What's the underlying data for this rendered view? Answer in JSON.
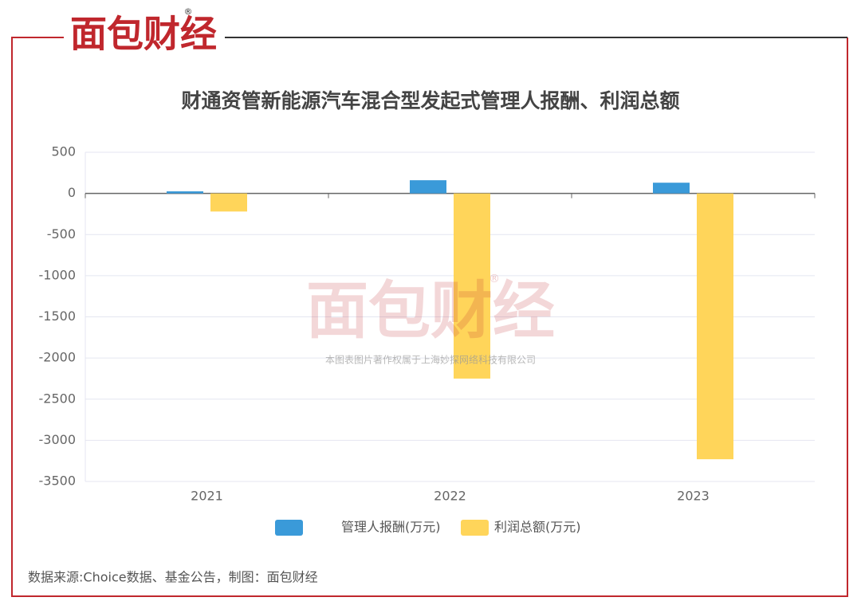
{
  "logo": {
    "text": "面包财经",
    "mark": "®"
  },
  "watermark": {
    "text": "面包财经",
    "mark": "®",
    "note": "本图表图片著作权属于上海妙探网络科技有限公司"
  },
  "source": "数据来源:Choice数据、基金公告，制图：面包财经",
  "chart_data": {
    "type": "bar",
    "title": "财通资管新能源汽车混合型发起式管理人报酬、利润总额",
    "categories": [
      "2021",
      "2022",
      "2023"
    ],
    "series": [
      {
        "name": "管理人报酬(万元)",
        "color": "#3a9ad9",
        "values": [
          25,
          160,
          130
        ]
      },
      {
        "name": "利润总额(万元)",
        "color": "#ffd55a",
        "values": [
          -220,
          -2250,
          -3230
        ]
      }
    ],
    "ylim": [
      -3500,
      500
    ],
    "yticks": [
      500,
      0,
      -500,
      -1000,
      -1500,
      -2000,
      -2500,
      -3000,
      -3500
    ],
    "grid": true
  }
}
